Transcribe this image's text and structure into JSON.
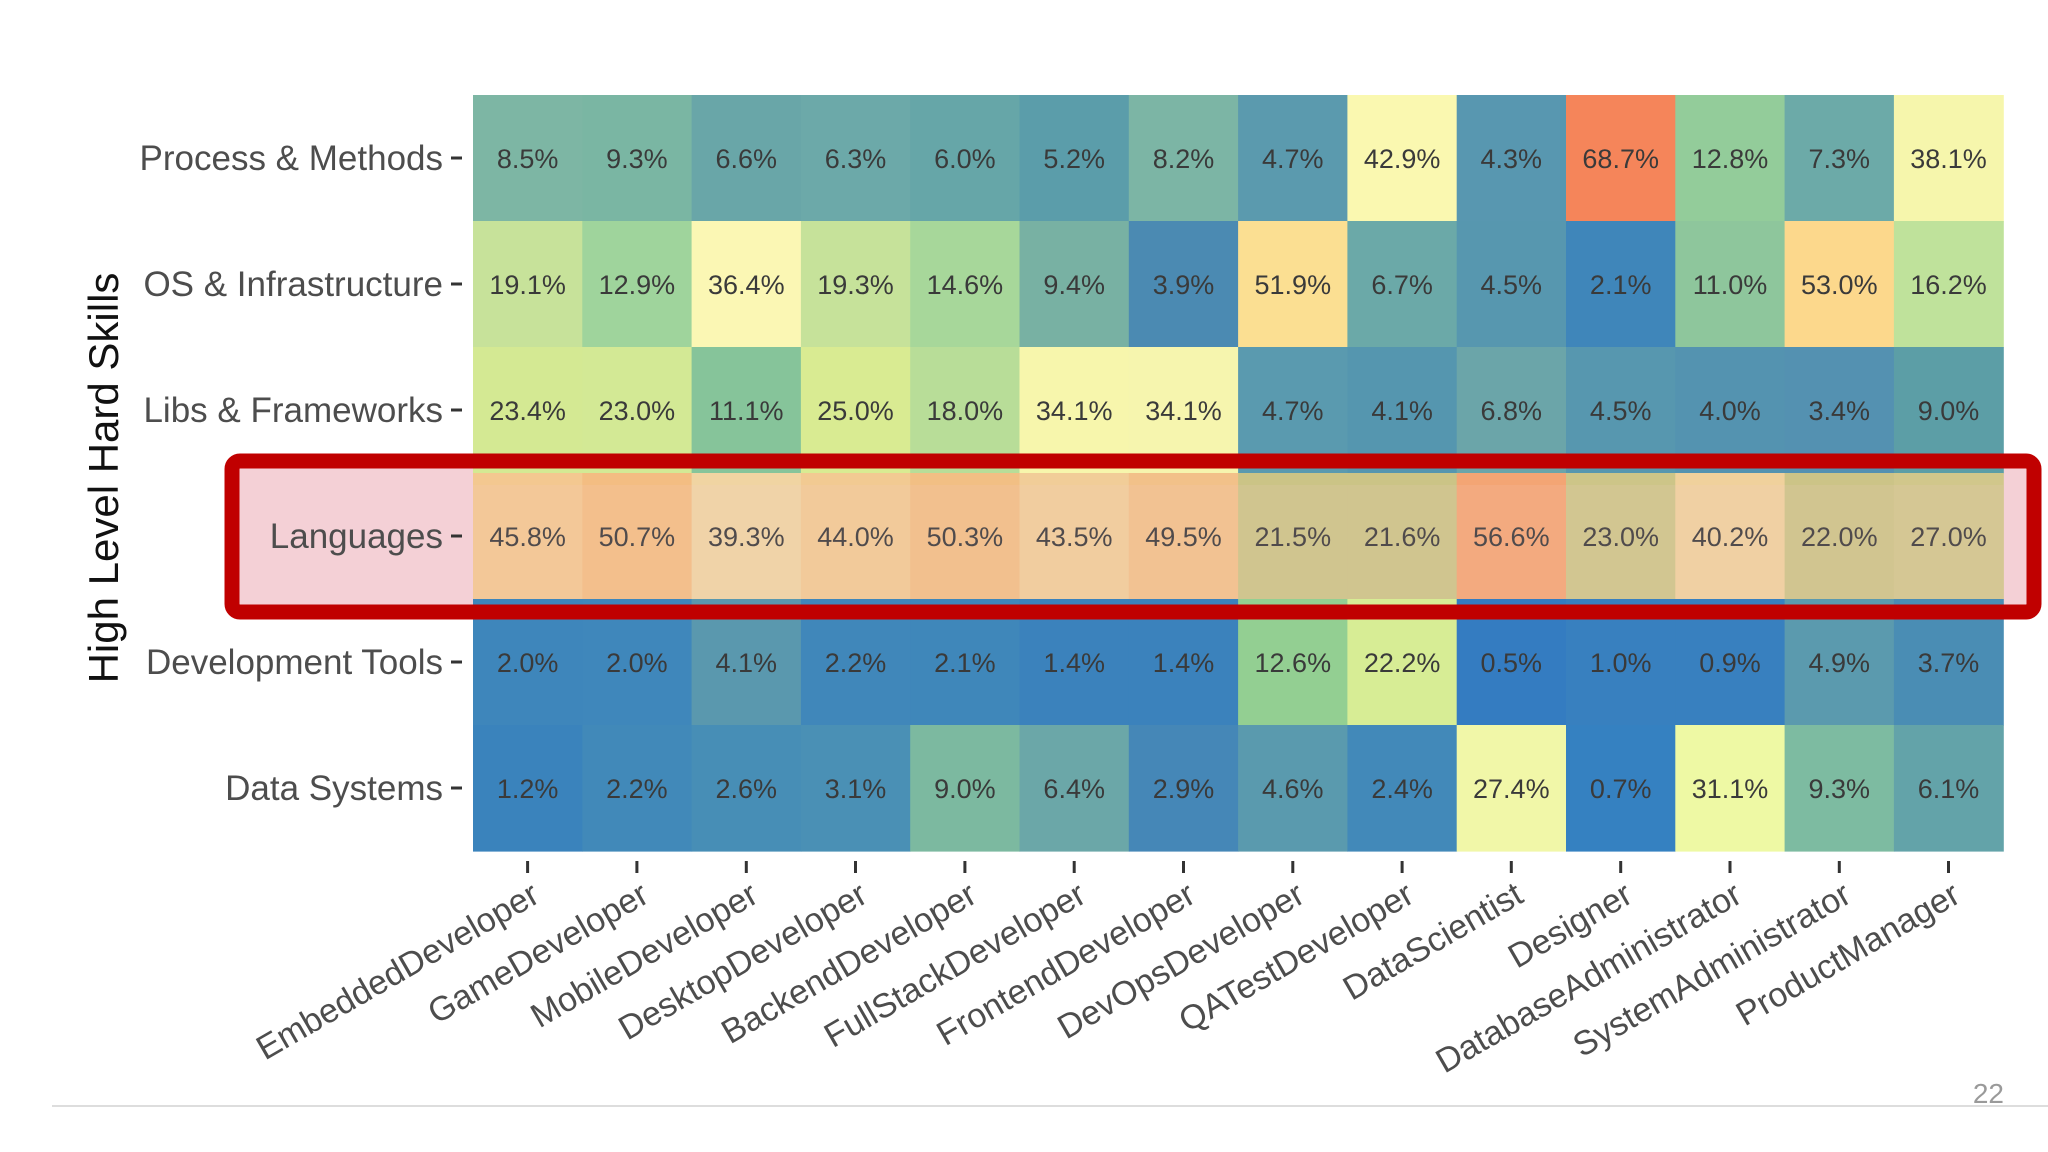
{
  "page_number": "22",
  "highlight": {
    "row": "Languages",
    "color": "#c00000",
    "fill": "#f4d0d6"
  },
  "chart_data": {
    "type": "heatmap",
    "title": "",
    "xlabel": "",
    "ylabel": "High Level Hard Skills",
    "columns": [
      "EmbeddedDeveloper",
      "GameDeveloper",
      "MobileDeveloper",
      "DesktopDeveloper",
      "BackendDeveloper",
      "FullStackDeveloper",
      "FrontendDeveloper",
      "DevOpsDeveloper",
      "QATestDeveloper",
      "DataScientist",
      "Designer",
      "DatabaseAdministrator",
      "SystemAdministrator",
      "ProductManager"
    ],
    "rows": [
      "Process & Methods",
      "OS & Infrastructure",
      "Libs & Frameworks",
      "Languages",
      "Development Tools",
      "Data Systems"
    ],
    "values": [
      [
        8.5,
        9.3,
        6.6,
        6.3,
        6.0,
        5.2,
        8.2,
        4.7,
        42.9,
        4.3,
        68.7,
        12.8,
        7.3,
        38.1
      ],
      [
        19.1,
        12.9,
        36.4,
        19.3,
        14.6,
        9.4,
        3.9,
        51.9,
        6.7,
        4.5,
        2.1,
        11.0,
        53.0,
        16.2
      ],
      [
        23.4,
        23.0,
        11.1,
        25.0,
        18.0,
        34.1,
        34.1,
        4.7,
        4.1,
        6.8,
        4.5,
        4.0,
        3.4,
        9.0
      ],
      [
        45.8,
        50.7,
        39.3,
        44.0,
        50.3,
        43.5,
        49.5,
        21.5,
        21.6,
        56.6,
        23.0,
        40.2,
        22.0,
        27.0
      ],
      [
        2.0,
        2.0,
        4.1,
        2.2,
        2.1,
        1.4,
        1.4,
        12.6,
        22.2,
        0.5,
        1.0,
        0.9,
        4.9,
        3.7
      ],
      [
        1.2,
        2.2,
        2.6,
        3.1,
        9.0,
        6.4,
        2.9,
        4.6,
        2.4,
        27.4,
        0.7,
        31.1,
        9.3,
        6.1
      ]
    ],
    "labels": [
      [
        "8.5%",
        "9.3%",
        "6.6%",
        "6.3%",
        "6.0%",
        "5.2%",
        "8.2%",
        "4.7%",
        "42.9%",
        "4.3%",
        "68.7%",
        "12.8%",
        "7.3%",
        "38.1%"
      ],
      [
        "19.1%",
        "12.9%",
        "36.4%",
        "19.3%",
        "14.6%",
        "9.4%",
        "3.9%",
        "51.9%",
        "6.7%",
        "4.5%",
        "2.1%",
        "11.0%",
        "53.0%",
        "16.2%"
      ],
      [
        "23.4%",
        "23.0%",
        "11.1%",
        "25.0%",
        "18.0%",
        "34.1%",
        "34.1%",
        "4.7%",
        "4.1%",
        "6.8%",
        "4.5%",
        "4.0%",
        "3.4%",
        "9.0%"
      ],
      [
        "45.8%",
        "50.7%",
        "39.3%",
        "44.0%",
        "50.3%",
        "43.5%",
        "49.5%",
        "21.5%",
        "21.6%",
        "56.6%",
        "23.0%",
        "40.2%",
        "22.0%",
        "27.0%"
      ],
      [
        "2.0%",
        "2.0%",
        "4.1%",
        "2.2%",
        "2.1%",
        "1.4%",
        "1.4%",
        "12.6%",
        "22.2%",
        "0.5%",
        "1.0%",
        "0.9%",
        "4.9%",
        "3.7%"
      ],
      [
        "1.2%",
        "2.2%",
        "2.6%",
        "3.1%",
        "9.0%",
        "6.4%",
        "2.9%",
        "4.6%",
        "2.4%",
        "27.4%",
        "0.7%",
        "31.1%",
        "9.3%",
        "6.1%"
      ]
    ],
    "cell_colors": [
      [
        "#7db6a4",
        "#7ab6a3",
        "#69a6a8",
        "#6ca9a9",
        "#66a6a8",
        "#5b9daa",
        "#7cb5a5",
        "#5b9aae",
        "#faf8b0",
        "#5897b0",
        "#f5855a",
        "#93cc9a",
        "#6caaa8",
        "#f6f6ac"
      ],
      [
        "#c7e29a",
        "#9fd49c",
        "#fbf7b4",
        "#c6e29a",
        "#a7d79a",
        "#78b1a3",
        "#4b8ab2",
        "#fbdf92",
        "#6ba9a8",
        "#5797af",
        "#3f86ba",
        "#8ec69c",
        "#fcd88c",
        "#bfe29b"
      ],
      [
        "#d4e993",
        "#d3e995",
        "#86c49a",
        "#d9eb92",
        "#b8dd98",
        "#f7f6ac",
        "#f6f5ae",
        "#5a9aaf",
        "#5596af",
        "#6ba5a9",
        "#5797af",
        "#5493b0",
        "#5491b1",
        "#5c9ea6"
      ],
      [
        "#f3c890",
        "#f3bd82",
        "#f0d4a2",
        "#f2ca92",
        "#f2bf84",
        "#f1cd98",
        "#f2c189",
        "#cbc486",
        "#cbc486",
        "#f3a574",
        "#cdc588",
        "#f0d19c",
        "#ccc487",
        "#d1c78b"
      ],
      [
        "#3e86bb",
        "#3f87bb",
        "#5a98ae",
        "#4087ba",
        "#3f87ba",
        "#3b82bc",
        "#3b82bc",
        "#93cf92",
        "#d7ed95",
        "#347cc1",
        "#3880bf",
        "#3880bf",
        "#5b9aae",
        "#4a8db4"
      ],
      [
        "#3a83bc",
        "#4189b9",
        "#478eb6",
        "#4a90b5",
        "#7cb9a0",
        "#6ba7a8",
        "#4587b7",
        "#5a9aae",
        "#4289b9",
        "#f1f7a8",
        "#3581c1",
        "#eef9a4",
        "#7dbba1",
        "#63a3a9"
      ]
    ]
  }
}
